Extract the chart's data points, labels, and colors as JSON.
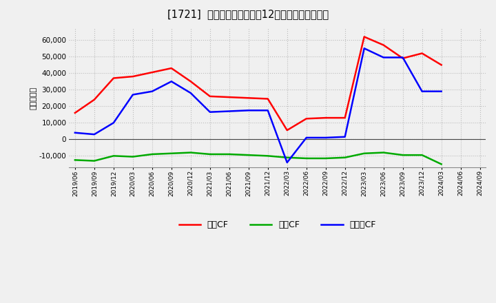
{
  "title": "[1721]  キャッシュフローの12か月移動合計の推移",
  "ylabel": "（百万円）",
  "dates": [
    "2019/06",
    "2019/09",
    "2019/12",
    "2020/03",
    "2020/06",
    "2020/09",
    "2020/12",
    "2021/03",
    "2021/06",
    "2021/09",
    "2021/12",
    "2022/03",
    "2022/06",
    "2022/09",
    "2022/12",
    "2023/03",
    "2023/06",
    "2023/09",
    "2023/12",
    "2024/03",
    "2024/06",
    "2024/09"
  ],
  "eigyo_cf": [
    16000,
    24000,
    37000,
    38000,
    40500,
    43000,
    35000,
    26000,
    25500,
    25000,
    24500,
    5500,
    12500,
    13000,
    13000,
    62000,
    57000,
    49000,
    52000,
    45000,
    null,
    null
  ],
  "toshi_cf": [
    -12500,
    -13000,
    -10000,
    -10500,
    -9000,
    -8500,
    -8000,
    -9000,
    -9000,
    -9500,
    -10000,
    -11000,
    -11500,
    -11500,
    -11000,
    -8500,
    -8000,
    -9500,
    -9500,
    -15000,
    null,
    null
  ],
  "free_cf": [
    4000,
    3000,
    10000,
    27000,
    29000,
    35000,
    28000,
    16500,
    17000,
    17500,
    17500,
    -14000,
    1000,
    1000,
    1500,
    55000,
    49500,
    49500,
    29000,
    29000,
    null,
    null
  ],
  "ylim": [
    -17000,
    67000
  ],
  "yticks": [
    -10000,
    0,
    10000,
    20000,
    30000,
    40000,
    50000,
    60000
  ],
  "colors": {
    "eigyo": "#ff0000",
    "toshi": "#00aa00",
    "free": "#0000ff"
  },
  "background": "#f0f0f0",
  "grid_color": "#bbbbbb",
  "legend_labels": [
    "営業CF",
    "投資CF",
    "フリーCF"
  ]
}
